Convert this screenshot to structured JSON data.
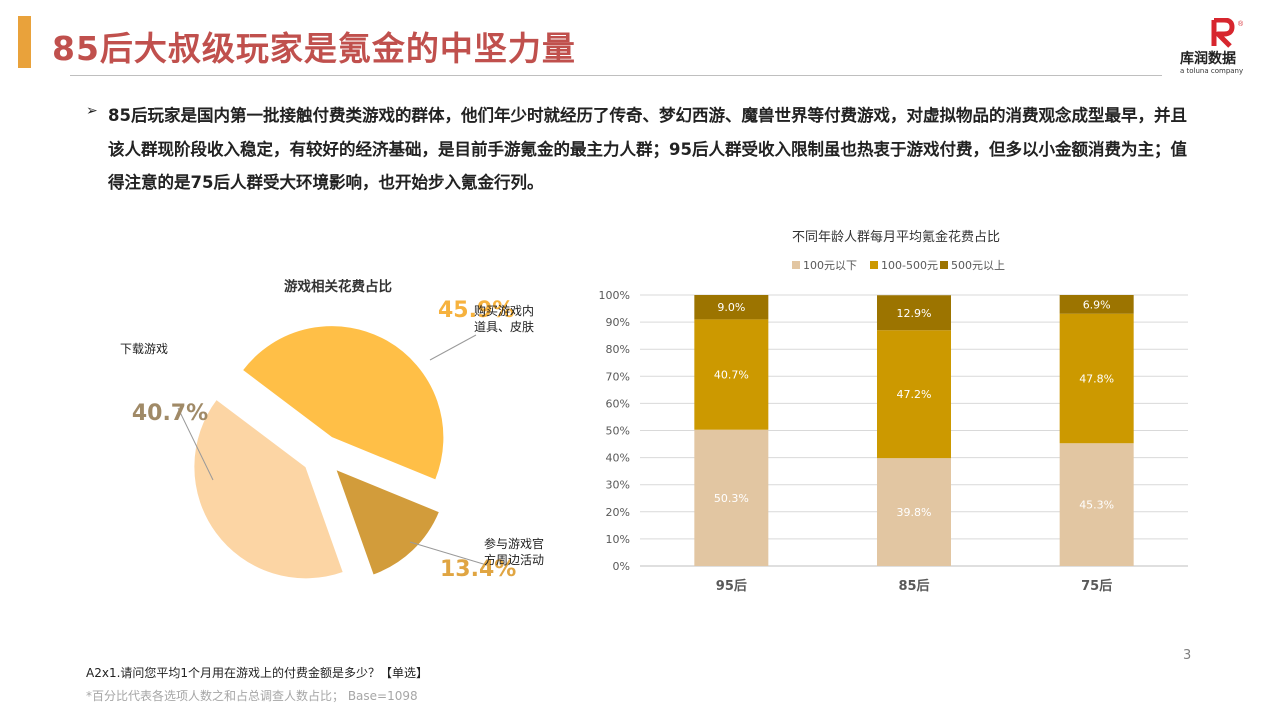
{
  "header": {
    "title": "85后大叔级玩家是氪金的中坚力量",
    "logo_text": "库润数据",
    "logo_sub": "a toluna company",
    "logo_mark": "R",
    "logo_reg": "®"
  },
  "intro": {
    "bullet": "➢",
    "text": "85后玩家是国内第一批接触付费类游戏的群体，他们年少时就经历了传奇、梦幻西游、魔兽世界等付费游戏，对虚拟物品的消费观念成型最早，并且该人群现阶段收入稳定，有较好的经济基础，是目前手游氪金的最主力人群；95后人群受收入限制虽也热衷于游戏付费，但多以小金额消费为主；值得注意的是75后人群受大环境影响，也开始步入氪金行列。"
  },
  "footer": {
    "question": "A2x1.请问您平均1个月用在游戏上的付费金额是多少？【单选】",
    "note": "*百分比代表各选项人数之和占总调查人数占比； Base=1098",
    "page_number": "3"
  },
  "chart_data": [
    {
      "type": "pie",
      "title": "游戏相关花费占比",
      "slices": [
        {
          "label": "购买游戏内道具、皮肤",
          "label_lines": [
            "购买游戏内",
            "道具、皮肤"
          ],
          "value": 45.9,
          "value_text": "45.9%",
          "color": "#ffbf47",
          "value_color": "#f6b23e"
        },
        {
          "label": "参与游戏官方周边活动",
          "label_lines": [
            "参与游戏官",
            "方周边活动"
          ],
          "value": 13.4,
          "value_text": "13.4%",
          "color": "#d29c3b",
          "value_color": "#e0a542"
        },
        {
          "label": "下载游戏",
          "label_lines": [
            "下载游戏"
          ],
          "value": 40.7,
          "value_text": "40.7%",
          "color": "#fcd5a4",
          "value_color": "#a08a67"
        }
      ]
    },
    {
      "type": "bar",
      "stacked": true,
      "title": "不同年龄人群每月平均氪金花费占比",
      "categories": [
        "95后",
        "85后",
        "75后"
      ],
      "series": [
        {
          "name": "100元以下",
          "values": [
            50.3,
            39.8,
            45.3
          ],
          "color": "#e2c6a2"
        },
        {
          "name": "100-500元",
          "values": [
            40.7,
            47.2,
            47.8
          ],
          "color": "#cc9900"
        },
        {
          "name": "500元以上",
          "values": [
            9.0,
            12.9,
            6.9
          ],
          "color": "#9c7400"
        }
      ],
      "ylim": [
        0,
        100
      ],
      "yticks": [
        "0%",
        "10%",
        "20%",
        "30%",
        "40%",
        "50%",
        "60%",
        "70%",
        "80%",
        "90%",
        "100%"
      ],
      "grid": true,
      "legend": "top"
    }
  ]
}
